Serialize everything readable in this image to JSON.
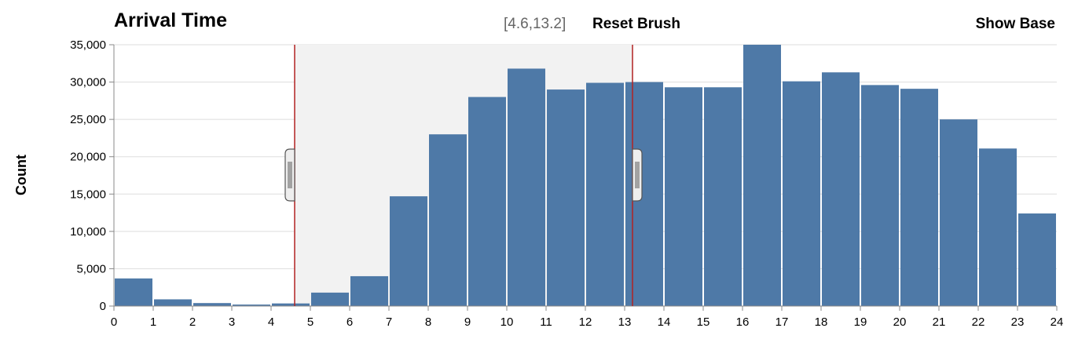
{
  "header": {
    "title": "Arrival Time",
    "range_label": "[4.6,13.2]",
    "reset_label": "Reset Brush",
    "show_base_label": "Show Base"
  },
  "colors": {
    "bar": "#4e79a7",
    "brush_line": "#b22222",
    "brush_fill": "#f2f2f2",
    "grid": "#dddddd"
  },
  "chart_data": {
    "type": "bar",
    "xlabel": "",
    "ylabel": "Count",
    "x_ticks": [
      "0",
      "1",
      "2",
      "3",
      "4",
      "5",
      "6",
      "7",
      "8",
      "9",
      "10",
      "11",
      "12",
      "13",
      "14",
      "15",
      "16",
      "17",
      "18",
      "19",
      "20",
      "21",
      "22",
      "23",
      "24"
    ],
    "y_ticks": [
      "0",
      "5,000",
      "10,000",
      "15,000",
      "20,000",
      "25,000",
      "30,000",
      "35,000"
    ],
    "xlim": [
      0,
      24
    ],
    "ylim": [
      0,
      35000
    ],
    "bin_edges": [
      0,
      1,
      2,
      3,
      4,
      5,
      6,
      7,
      8,
      9,
      10,
      11,
      12,
      13,
      14,
      15,
      16,
      17,
      18,
      19,
      20,
      21,
      22,
      23,
      24
    ],
    "values": [
      3700,
      900,
      400,
      200,
      350,
      1800,
      4000,
      14700,
      23000,
      28000,
      31800,
      29000,
      29900,
      30000,
      29300,
      29300,
      35000,
      30100,
      31300,
      29600,
      29100,
      25000,
      21100,
      12400
    ],
    "brush": [
      4.6,
      13.2
    ],
    "grid": true
  }
}
